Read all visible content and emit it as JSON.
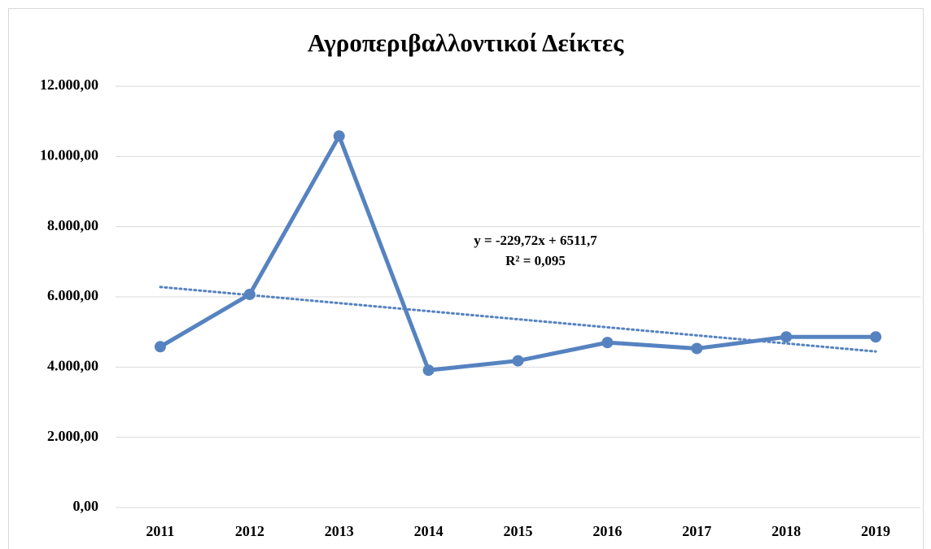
{
  "chart_data": {
    "type": "line",
    "title": "Αγροπεριβαλλοντικοί Δείκτες",
    "categories": [
      "2011",
      "2012",
      "2013",
      "2014",
      "2015",
      "2016",
      "2017",
      "2018",
      "2019"
    ],
    "series": [
      {
        "color": "#5683c0",
        "values": [
          4580,
          6070,
          10580,
          3910,
          4180,
          4700,
          4530,
          4860,
          4860
        ]
      }
    ],
    "trendline": {
      "color": "#5683c0",
      "values": [
        6282,
        4444
      ],
      "equation": "y = -229,72x + 6511,7",
      "r_squared": "R² = 0,095"
    },
    "ylim": [
      0,
      12000
    ],
    "yticks": [
      {
        "value": 0,
        "label": "0,00"
      },
      {
        "value": 2000,
        "label": "2.000,00"
      },
      {
        "value": 4000,
        "label": "4.000,00"
      },
      {
        "value": 6000,
        "label": "6.000,00"
      },
      {
        "value": 8000,
        "label": "8.000,00"
      },
      {
        "value": 10000,
        "label": "10.000,00"
      },
      {
        "value": 12000,
        "label": "12.000,00"
      }
    ],
    "grid": true
  }
}
